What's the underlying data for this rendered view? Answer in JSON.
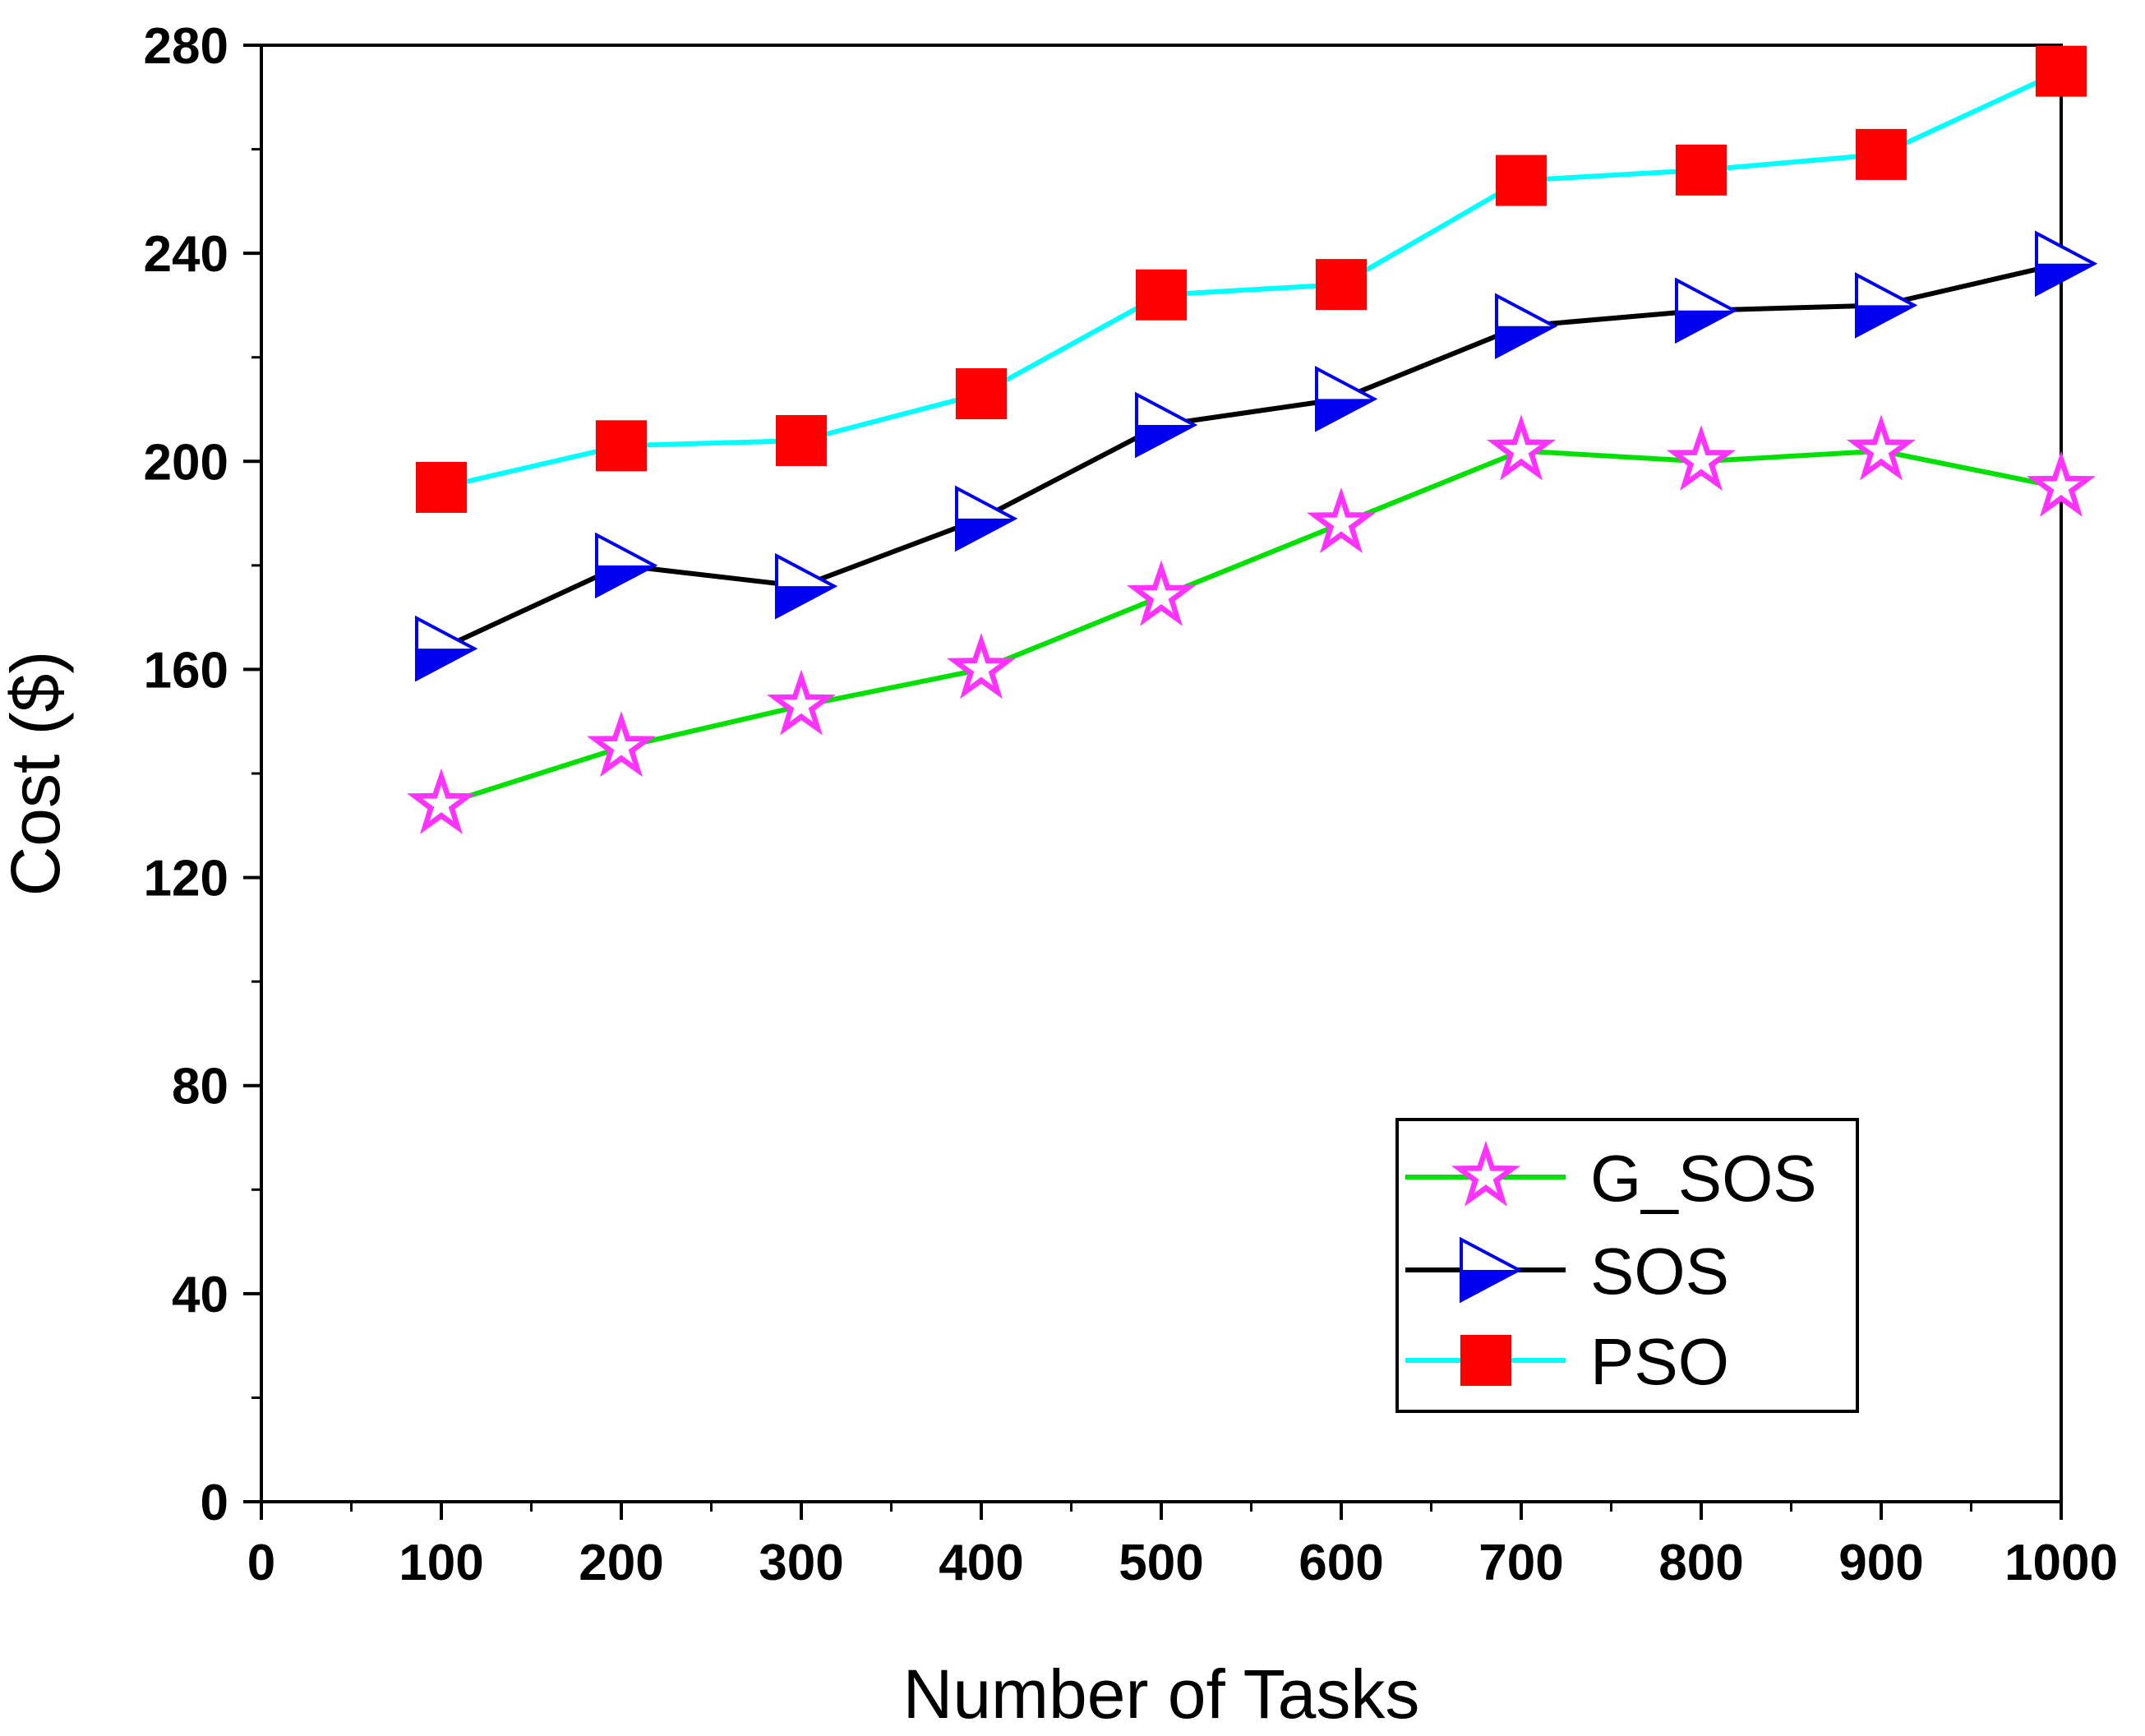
{
  "chart_data": {
    "type": "line",
    "title": "",
    "xlabel": "Number of Tasks",
    "ylabel": "Cost ($)",
    "xlim": [
      0,
      1000
    ],
    "ylim": [
      0,
      280
    ],
    "xticks": [
      0,
      100,
      200,
      300,
      400,
      500,
      600,
      700,
      800,
      900,
      1000
    ],
    "yticks": [
      0,
      40,
      80,
      120,
      160,
      200,
      240,
      280
    ],
    "grid": false,
    "legend_position": "bottom-right",
    "x": [
      100,
      200,
      300,
      400,
      500,
      600,
      700,
      800,
      900,
      1000
    ],
    "series": [
      {
        "name": "G_SOS",
        "line_color": "#00e000",
        "marker": "star",
        "marker_color": "#ff33ff",
        "values": [
          134,
          145,
          153,
          160,
          174,
          188,
          202,
          200,
          202,
          195
        ]
      },
      {
        "name": "SOS",
        "line_color": "#000000",
        "marker": "half-triangle",
        "marker_color": "#0000ee",
        "values": [
          164,
          180,
          176,
          189,
          207,
          212,
          226,
          229,
          230,
          238
        ]
      },
      {
        "name": "PSO",
        "line_color": "#00ffff",
        "marker": "square",
        "marker_color": "#ff0000",
        "values": [
          195,
          203,
          204,
          213,
          232,
          234,
          254,
          256,
          259,
          275
        ]
      }
    ]
  }
}
